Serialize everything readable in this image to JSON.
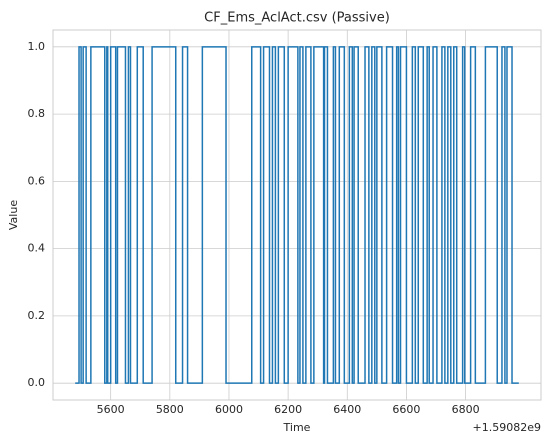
{
  "chart_data": {
    "type": "line",
    "step": "post",
    "title": "CF_Ems_AclAct.csv (Passive)",
    "xlabel": "Time",
    "ylabel": "Value",
    "x_offset_label": "+1.59082e9",
    "x": [
      5480,
      5493,
      5500,
      5507,
      5517,
      5533,
      5580,
      5587,
      5590,
      5600,
      5617,
      5623,
      5650,
      5660,
      5667,
      5690,
      5710,
      5740,
      5820,
      5843,
      5860,
      5910,
      5990,
      6077,
      6107,
      6117,
      6137,
      6147,
      6157,
      6167,
      6187,
      6200,
      6233,
      6240,
      6250,
      6260,
      6277,
      6287,
      6320,
      6323,
      6333,
      6353,
      6360,
      6373,
      6390,
      6407,
      6417,
      6423,
      6437,
      6460,
      6473,
      6483,
      6493,
      6500,
      6517,
      6533,
      6553,
      6567,
      6573,
      6580,
      6600,
      6620,
      6630,
      6640,
      6657,
      6670,
      6677,
      6690,
      6703,
      6720,
      6730,
      6740,
      6750,
      6760,
      6770,
      6790,
      6797,
      6817,
      6833,
      6867,
      6907,
      6923,
      6933,
      6940,
      6957,
      6980
    ],
    "series": [
      {
        "color": "#1f77b4",
        "values": [
          0,
          1,
          0,
          1,
          0,
          1,
          0,
          1,
          0,
          1,
          0,
          1,
          0,
          1,
          0,
          1,
          0,
          1,
          0,
          1,
          0,
          1,
          0,
          1,
          0,
          1,
          0,
          1,
          0,
          1,
          0,
          1,
          0,
          1,
          0,
          1,
          0,
          1,
          0,
          1,
          0,
          1,
          0,
          1,
          0,
          1,
          0,
          1,
          0,
          1,
          0,
          1,
          0,
          1,
          0,
          1,
          0,
          1,
          0,
          1,
          0,
          1,
          0,
          1,
          0,
          1,
          0,
          1,
          0,
          1,
          0,
          1,
          0,
          1,
          0,
          1,
          0,
          1,
          0,
          1,
          0,
          1,
          0,
          1,
          0,
          0
        ]
      }
    ],
    "xlim": [
      5405,
      7055
    ],
    "xticks": [
      5600,
      5800,
      6000,
      6200,
      6400,
      6600,
      6800
    ],
    "ylim": [
      -0.05,
      1.05
    ],
    "yticks": [
      {
        "value": 0,
        "label": "0.0"
      },
      0.2,
      0.4,
      0.6,
      0.8,
      {
        "value": 1,
        "label": "1.0"
      }
    ],
    "grid": true
  }
}
